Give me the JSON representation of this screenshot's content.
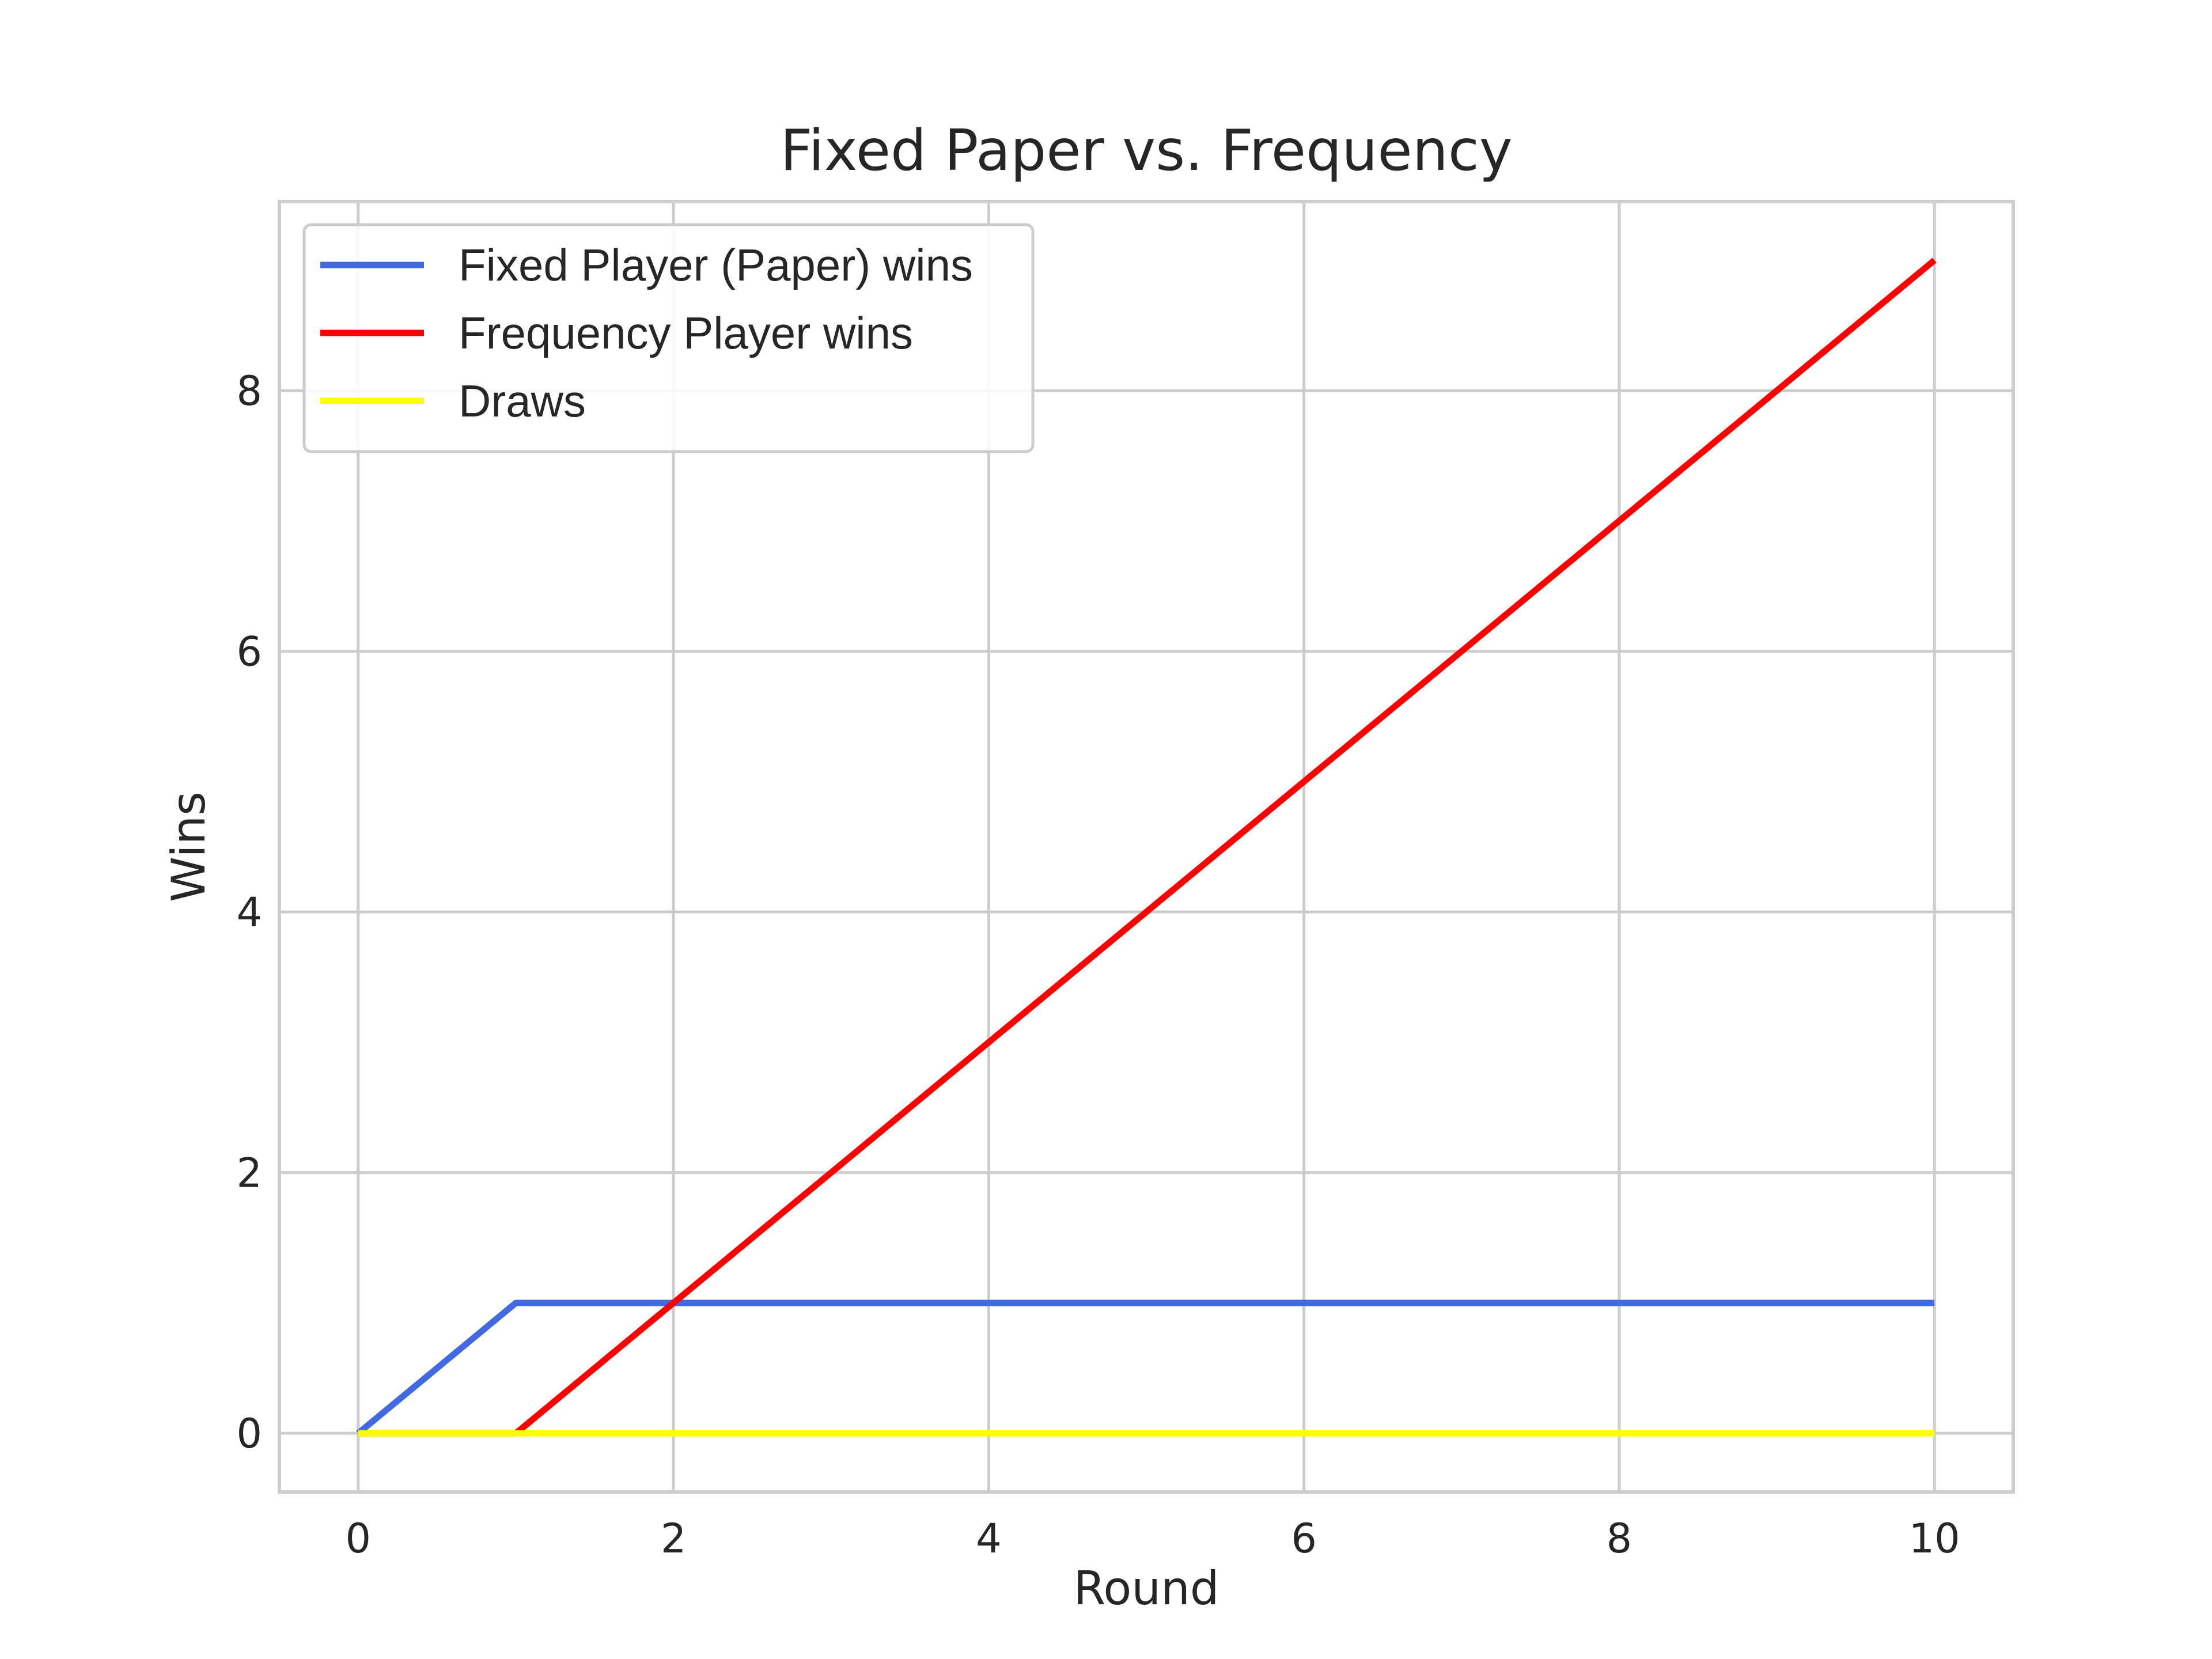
{
  "chart_data": {
    "type": "line",
    "title": "Fixed Paper vs.  Frequency",
    "xlabel": "Round",
    "ylabel": "Wins",
    "xlim": [
      -0.5,
      10.5
    ],
    "ylim": [
      -0.45,
      9.45
    ],
    "xticks": [
      0,
      2,
      4,
      6,
      8,
      10
    ],
    "yticks": [
      0,
      2,
      4,
      6,
      8
    ],
    "grid": true,
    "legend_position": "top-left",
    "x": [
      0,
      1,
      2,
      3,
      4,
      5,
      6,
      7,
      8,
      9,
      10
    ],
    "series": [
      {
        "name": "Fixed Player (Paper) wins",
        "color": "#4169e1",
        "values": [
          0,
          1,
          1,
          1,
          1,
          1,
          1,
          1,
          1,
          1,
          1
        ]
      },
      {
        "name": "Frequency Player wins",
        "color": "#ff0000",
        "values": [
          0,
          0,
          1,
          2,
          3,
          4,
          5,
          6,
          7,
          8,
          9
        ]
      },
      {
        "name": "Draws",
        "color": "#ffff00",
        "values": [
          0,
          0,
          0,
          0,
          0,
          0,
          0,
          0,
          0,
          0,
          0
        ]
      }
    ]
  }
}
